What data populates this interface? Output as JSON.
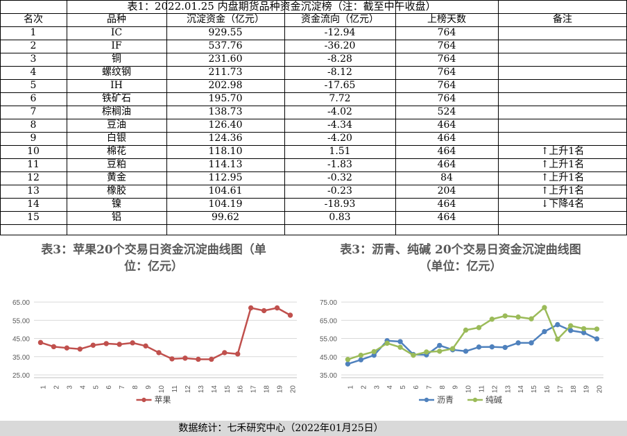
{
  "table": {
    "title": "表1：2022.01.25 内盘期货品种资金沉淀榜（注：截至中午收盘）",
    "headers": [
      "名次",
      "品种",
      "沉淀资金（亿元）",
      "资金流向（亿元）",
      "上榜天数",
      "备注"
    ],
    "rows": [
      {
        "rank": "1",
        "name": "IC",
        "capital": "929.55",
        "flow": "-12.94",
        "days": "764",
        "note": ""
      },
      {
        "rank": "2",
        "name": "IF",
        "capital": "537.76",
        "flow": "-36.20",
        "days": "764",
        "note": ""
      },
      {
        "rank": "3",
        "name": "铜",
        "capital": "231.60",
        "flow": "-8.28",
        "days": "764",
        "note": ""
      },
      {
        "rank": "4",
        "name": "螺纹钢",
        "capital": "211.73",
        "flow": "-8.12",
        "days": "764",
        "note": ""
      },
      {
        "rank": "5",
        "name": "IH",
        "capital": "202.98",
        "flow": "-17.65",
        "days": "764",
        "note": ""
      },
      {
        "rank": "6",
        "name": "铁矿石",
        "capital": "195.70",
        "flow": "7.72",
        "days": "764",
        "note": ""
      },
      {
        "rank": "7",
        "name": "棕榈油",
        "capital": "138.73",
        "flow": "-4.02",
        "days": "524",
        "note": ""
      },
      {
        "rank": "8",
        "name": "豆油",
        "capital": "126.40",
        "flow": "-4.34",
        "days": "464",
        "note": ""
      },
      {
        "rank": "9",
        "name": "白银",
        "capital": "124.36",
        "flow": "-4.20",
        "days": "464",
        "note": ""
      },
      {
        "rank": "10",
        "name": "棉花",
        "capital": "118.10",
        "flow": "1.51",
        "days": "464",
        "note": "↑上升1名"
      },
      {
        "rank": "11",
        "name": "豆粕",
        "capital": "114.13",
        "flow": "-1.83",
        "days": "464",
        "note": "↑上升1名"
      },
      {
        "rank": "12",
        "name": "黄金",
        "capital": "112.95",
        "flow": "-0.32",
        "days": "84",
        "note": "↑上升1名"
      },
      {
        "rank": "13",
        "name": "橡胶",
        "capital": "104.61",
        "flow": "-0.23",
        "days": "204",
        "note": "↑上升1名"
      },
      {
        "rank": "14",
        "name": "镍",
        "capital": "104.19",
        "flow": "-18.93",
        "days": "464",
        "note": "↓下降4名"
      },
      {
        "rank": "15",
        "name": "铝",
        "capital": "99.62",
        "flow": "0.83",
        "days": "464",
        "note": ""
      }
    ]
  },
  "charts": {
    "left_title": "表3：苹果20个交易日资金沉淀曲线图（单位：亿元）",
    "right_title": "表3：沥青、纯碱 20个交易日资金沉淀曲线图（单位：亿元）"
  },
  "chart_data": [
    {
      "type": "line",
      "title": "表3：苹果20个交易日资金沉淀曲线图（单位：亿元）",
      "x": [
        1,
        2,
        3,
        4,
        5,
        6,
        7,
        8,
        9,
        10,
        11,
        12,
        13,
        14,
        15,
        16,
        17,
        18,
        19,
        20
      ],
      "ylim": [
        25,
        70
      ],
      "yticks": [
        "25.00",
        "35.00",
        "45.00",
        "55.00",
        "65.00"
      ],
      "series": [
        {
          "name": "苹果",
          "color": "#c0504d",
          "values": [
            42.8,
            40.5,
            39.8,
            39.2,
            41.3,
            42.2,
            41.8,
            42.6,
            40.9,
            37.2,
            33.8,
            34.2,
            33.6,
            33.6,
            37.2,
            36.5,
            61.8,
            60.3,
            61.8,
            57.8
          ]
        }
      ]
    },
    {
      "type": "line",
      "title": "表3：沥青、纯碱 20个交易日资金沉淀曲线图（单位：亿元）",
      "x": [
        1,
        2,
        3,
        4,
        5,
        6,
        7,
        8,
        9,
        10,
        11,
        12,
        13,
        14,
        15,
        16,
        17,
        18,
        19,
        20
      ],
      "ylim": [
        35,
        80
      ],
      "yticks": [
        "35.00",
        "45.00",
        "55.00",
        "65.00",
        "75.00"
      ],
      "series": [
        {
          "name": "沥青",
          "color": "#4f81bd",
          "values": [
            41.0,
            43.3,
            45.8,
            53.8,
            53.3,
            46.2,
            46.0,
            51.2,
            48.8,
            48.0,
            50.3,
            50.4,
            50.1,
            52.6,
            52.6,
            58.8,
            62.6,
            59.4,
            58.2,
            54.8
          ]
        },
        {
          "name": "纯碱",
          "color": "#9bbb59",
          "values": [
            43.5,
            45.8,
            47.8,
            52.4,
            50.2,
            45.8,
            47.6,
            48.0,
            49.4,
            59.6,
            61.0,
            65.6,
            67.4,
            66.8,
            65.8,
            72.0,
            54.6,
            62.0,
            60.4,
            60.2
          ]
        }
      ]
    }
  ],
  "footer": "数据统计：七禾研究中心（2022年01月25日）"
}
